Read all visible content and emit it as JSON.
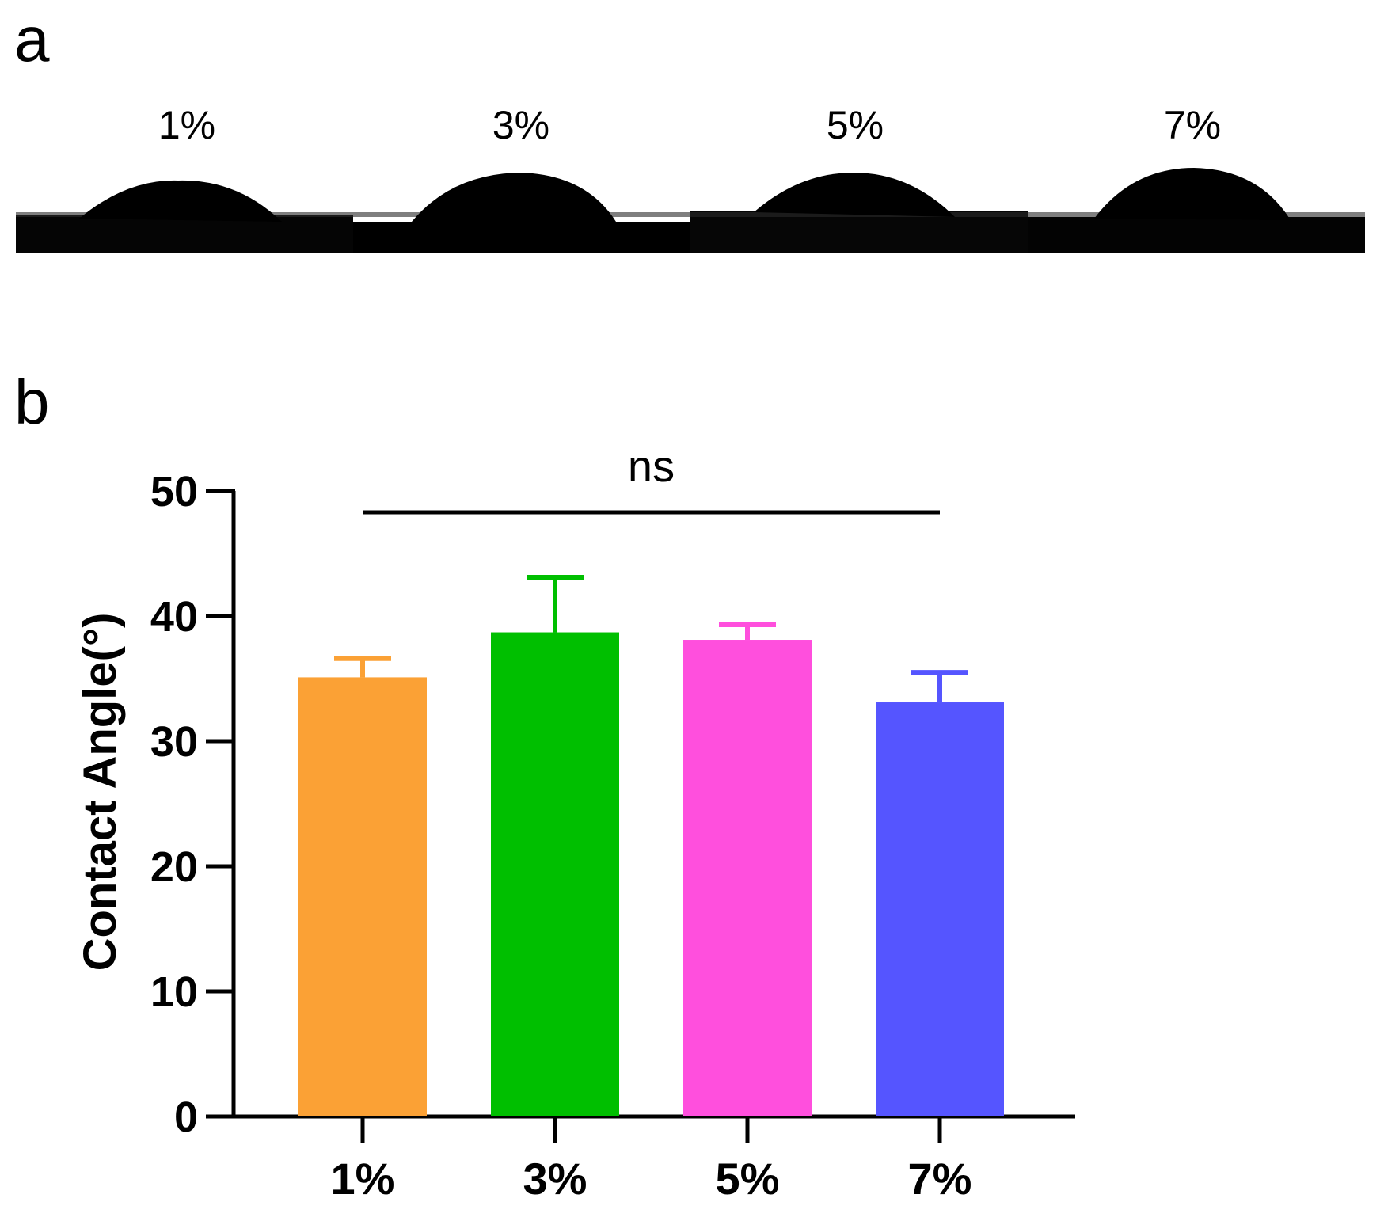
{
  "panels": {
    "a_label": "a",
    "b_label": "b"
  },
  "droplet_images": {
    "labels": [
      "1%",
      "3%",
      "5%",
      "7%"
    ]
  },
  "chart_data": {
    "type": "bar",
    "categories": [
      "1%",
      "3%",
      "5%",
      "7%"
    ],
    "values": [
      35.1,
      38.7,
      38.1,
      33.1
    ],
    "errors": [
      1.5,
      4.4,
      1.2,
      2.4
    ],
    "colors": [
      "#fba135",
      "#00bf00",
      "#ff4fdd",
      "#5555ff"
    ],
    "ylabel": "Contact Angle(°)",
    "xlabel": "",
    "ylim": [
      0,
      50
    ],
    "yticks": [
      0,
      10,
      20,
      30,
      40,
      50
    ],
    "grid": false,
    "annotations": [
      {
        "text": "ns",
        "type": "significance-bracket",
        "from": "1%",
        "to": "7%"
      }
    ]
  }
}
